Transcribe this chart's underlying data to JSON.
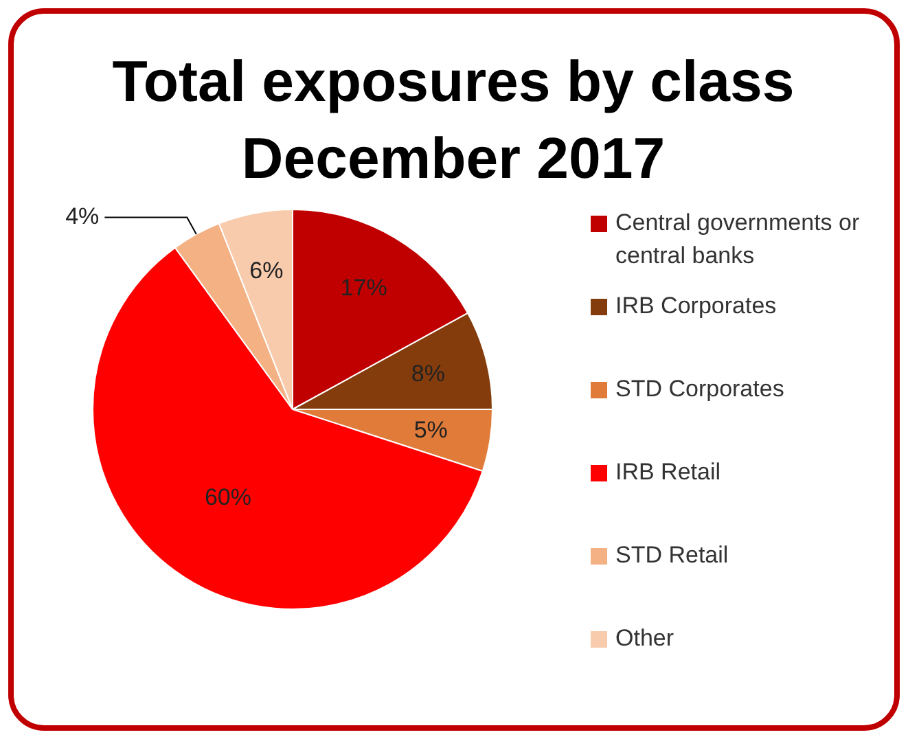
{
  "chart_data": {
    "type": "pie",
    "title": "Total exposures by class December 2017",
    "categories": [
      "Central governments or central banks",
      "IRB Corporates",
      "STD Corporates",
      "IRB Retail",
      "STD Retail",
      "Other"
    ],
    "values": [
      17,
      8,
      5,
      60,
      4,
      6
    ],
    "colors": [
      "#c00000",
      "#843c0c",
      "#e07b39",
      "#ff0000",
      "#f4b183",
      "#f8cbad"
    ],
    "value_labels": [
      "17%",
      "8%",
      "5%",
      "60%",
      "4%",
      "6%"
    ],
    "legend": "right"
  }
}
